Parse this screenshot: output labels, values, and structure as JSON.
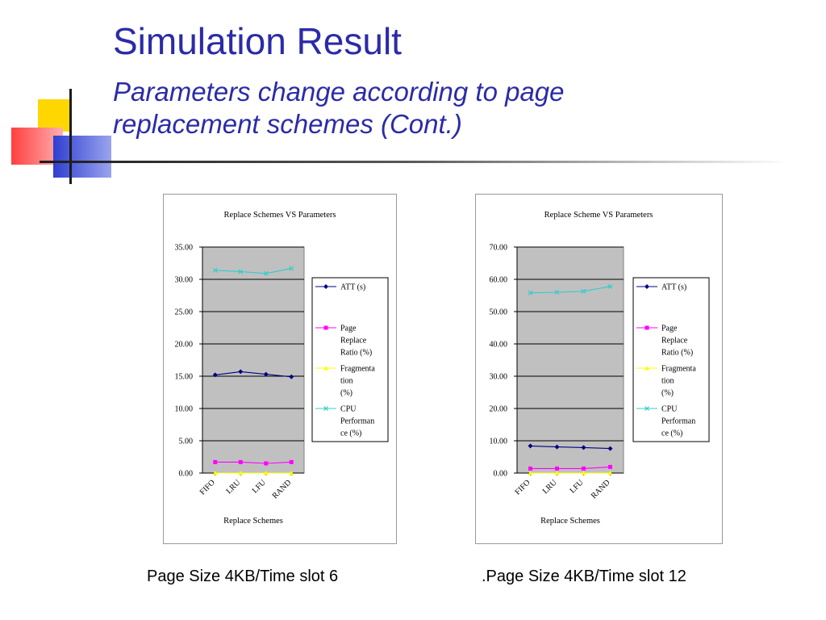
{
  "slide": {
    "title": "Simulation Result",
    "subtitle": "Parameters change according to page replacement schemes (Cont.)"
  },
  "captions": [
    "Page Size 4KB/Time slot 6",
    ".Page Size 4KB/Time slot 12"
  ],
  "chart_data": [
    {
      "type": "line",
      "title": "Replace Schemes VS Parameters",
      "xlabel": "Replace Schemes",
      "ylabel": "",
      "categories": [
        "FIFO",
        "LRU",
        "LFU",
        "RAND"
      ],
      "ylim": [
        0,
        35
      ],
      "yticks": [
        "35.00",
        "30.00",
        "25.00",
        "20.00",
        "15.00",
        "10.00",
        "5.00",
        "0.00"
      ],
      "grid": true,
      "legend_position": "right",
      "series": [
        {
          "name": "ATT (s)",
          "legend_lines": [
            "ATT (s)"
          ],
          "color": "#000080",
          "marker": "diamond",
          "values": [
            15.2,
            15.7,
            15.3,
            14.9
          ]
        },
        {
          "name": "Page Replace Ratio (%)",
          "legend_lines": [
            "Page",
            "Replace",
            "Ratio (%)"
          ],
          "color": "#ff00ff",
          "marker": "square",
          "values": [
            1.7,
            1.7,
            1.5,
            1.7
          ]
        },
        {
          "name": "Fragmentation (%)",
          "legend_lines": [
            "Fragmenta",
            "tion",
            "(%)"
          ],
          "color": "#ffff00",
          "marker": "triangle",
          "values": [
            0.0,
            0.0,
            0.0,
            0.0
          ]
        },
        {
          "name": "CPU Performance (%)",
          "legend_lines": [
            "CPU",
            "Performan",
            "ce  (%)"
          ],
          "color": "#33cccc",
          "marker": "x",
          "values": [
            31.4,
            31.2,
            30.9,
            31.7
          ]
        }
      ]
    },
    {
      "type": "line",
      "title": "Replace Scheme VS Parameters",
      "xlabel": "Replace Schemes",
      "ylabel": "",
      "categories": [
        "FIFO",
        "LRU",
        "LFU",
        "RAND"
      ],
      "ylim": [
        0,
        70
      ],
      "yticks": [
        "70.00",
        "60.00",
        "50.00",
        "40.00",
        "30.00",
        "20.00",
        "10.00",
        "0.00"
      ],
      "grid": true,
      "legend_position": "right",
      "series": [
        {
          "name": "ATT (s)",
          "legend_lines": [
            "ATT (s)"
          ],
          "color": "#000080",
          "marker": "diamond",
          "values": [
            8.4,
            8.1,
            7.9,
            7.6
          ]
        },
        {
          "name": "Page Replace Ratio (%)",
          "legend_lines": [
            "Page",
            "Replace",
            "Ratio (%)"
          ],
          "color": "#ff00ff",
          "marker": "square",
          "values": [
            1.4,
            1.4,
            1.4,
            1.9
          ]
        },
        {
          "name": "Fragmentation (%)",
          "legend_lines": [
            "Fragmenta",
            "tion",
            "(%)"
          ],
          "color": "#ffff00",
          "marker": "triangle",
          "values": [
            0.0,
            0.0,
            0.0,
            0.0
          ]
        },
        {
          "name": "CPU Performance (%)",
          "legend_lines": [
            "CPU",
            "Performan",
            "ce  (%)"
          ],
          "color": "#33cccc",
          "marker": "x",
          "values": [
            55.8,
            56.0,
            56.3,
            57.8
          ]
        }
      ]
    }
  ]
}
